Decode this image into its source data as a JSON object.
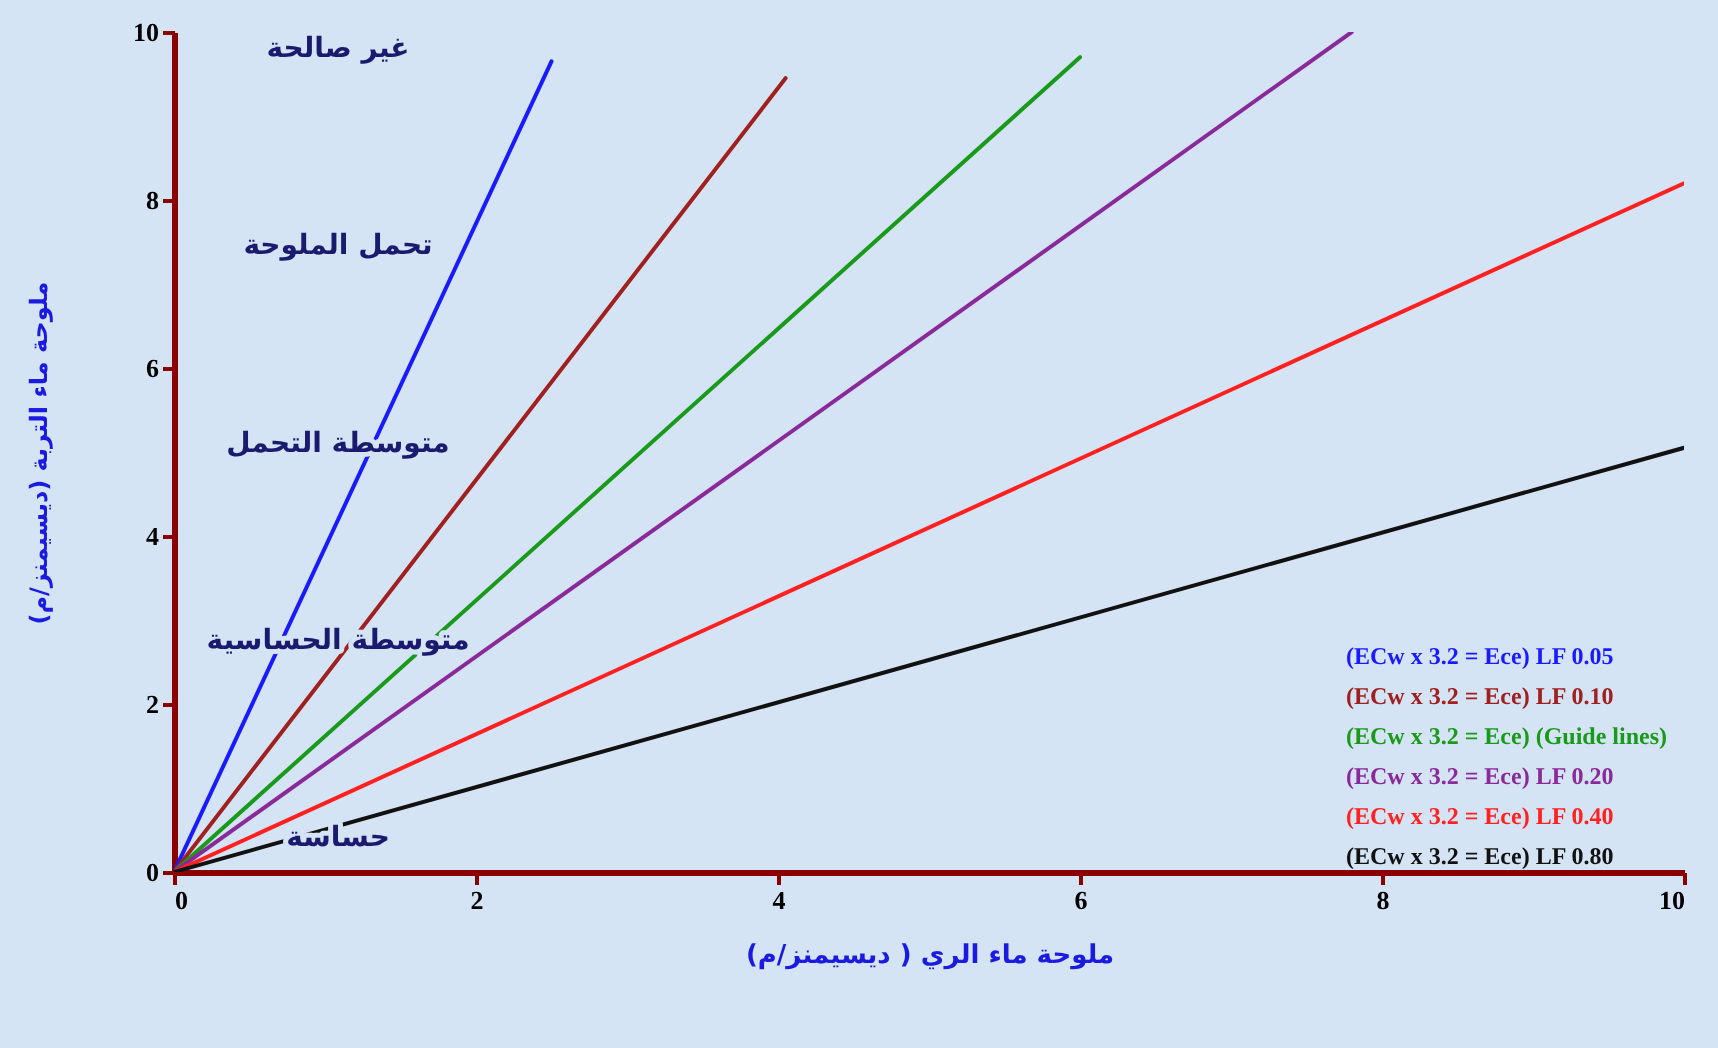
{
  "chart_data": {
    "type": "line",
    "xlabel": "ملوحة ماء الري ( ديسيمنز/م)",
    "ylabel": "ملوحة ماء التربة (ديسيمنز/م)",
    "xlim": [
      0,
      10
    ],
    "ylim": [
      0,
      10
    ],
    "xticks": [
      0,
      2,
      4,
      6,
      8,
      10
    ],
    "yticks": [
      0,
      2,
      4,
      6,
      8,
      10
    ],
    "grid": false,
    "legend": "bottom right",
    "marker": "none",
    "line_style": "solid",
    "series": [
      {
        "name": "(ECw x 3.2 = Ece)   LF 0.05",
        "color": "#1a1aff",
        "x": [
          0,
          2.5
        ],
        "values": [
          0,
          9.65
        ]
      },
      {
        "name": "(ECw x 3.2 = Ece)   LF 0.10",
        "color": "#a02020",
        "x": [
          0,
          4.05
        ],
        "values": [
          0,
          9.45
        ]
      },
      {
        "name": "(ECw x 3.2 = Ece)   (Guide lines)",
        "color": "#1a9a1a",
        "x": [
          0,
          6.0
        ],
        "values": [
          0,
          9.7
        ]
      },
      {
        "name": "(ECw x 3.2 = Ece)   LF 0.20",
        "color": "#8a2a9a",
        "x": [
          0,
          7.8
        ],
        "values": [
          0,
          10
        ]
      },
      {
        "name": "(ECw x 3.2 = Ece)   LF 0.40",
        "color": "#ff2020",
        "x": [
          0,
          10
        ],
        "values": [
          0,
          8.2
        ]
      },
      {
        "name": "(ECw x 3.2 = Ece)   LF 0.80",
        "color": "#111111",
        "x": [
          0,
          10
        ],
        "values": [
          0,
          5.05
        ]
      }
    ],
    "annotations": [
      "غير صالحة",
      "تحمل الملوحة",
      "متوسطة التحمل",
      "متوسطة الحساسية",
      "حساسة"
    ]
  }
}
